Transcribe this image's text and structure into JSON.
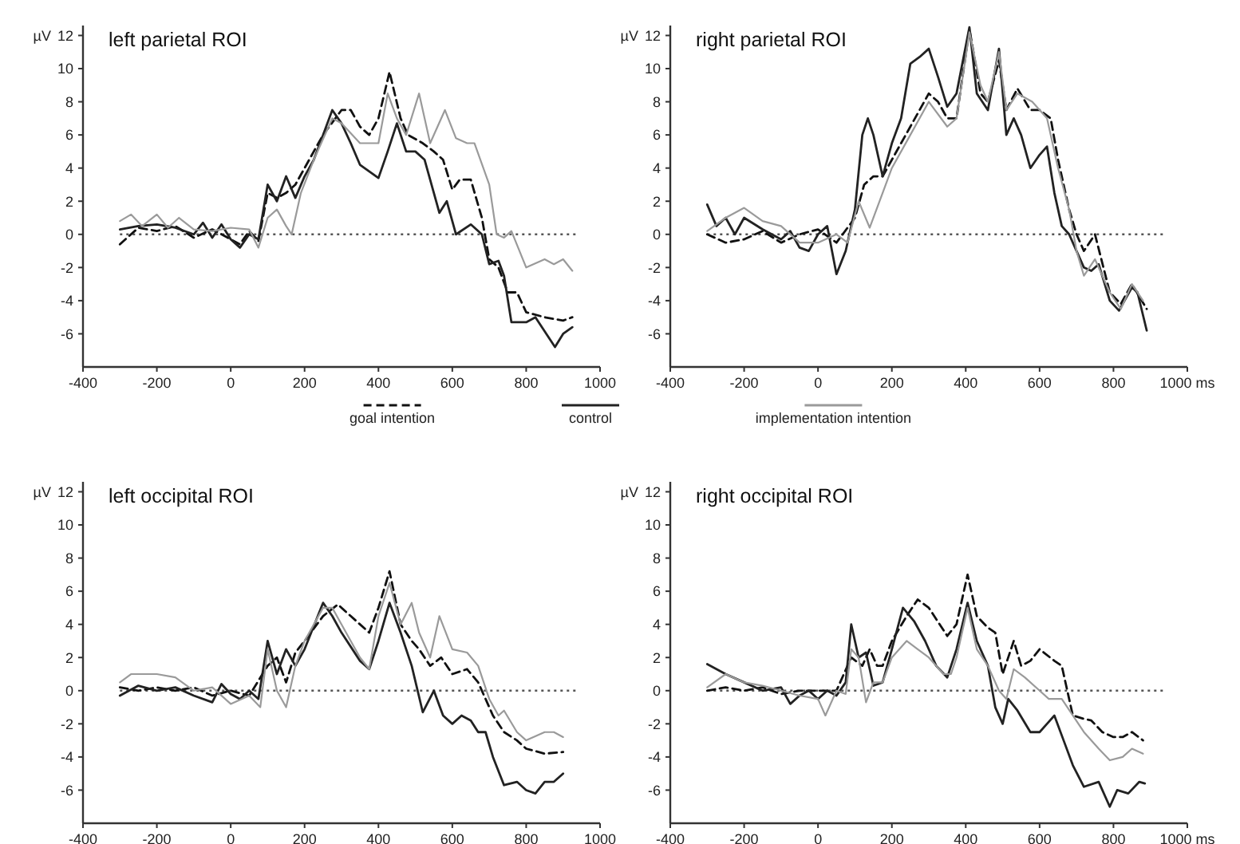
{
  "chart_data": [
    {
      "type": "line",
      "title": "left parietal ROI",
      "ylabel": "µV",
      "xlim": [
        -400,
        1000
      ],
      "xticks": [
        -400,
        -200,
        0,
        200,
        400,
        600,
        800,
        1000
      ],
      "ylim": [
        -8,
        12.6
      ],
      "yticks": [
        12,
        10,
        8,
        6,
        4,
        2,
        0,
        -2,
        -4,
        -6
      ],
      "legend": "bottom",
      "grid": false,
      "ref_lines": [
        {
          "axis": "y",
          "value": 0,
          "color": "#555555",
          "line_style": "dotted"
        }
      ],
      "series": [
        {
          "name": "goal intention",
          "color": "#111111",
          "line_style": "dashed",
          "x": [
            -300,
            -250,
            -200,
            -150,
            -100,
            -50,
            0,
            25,
            50,
            75,
            100,
            125,
            150,
            175,
            200,
            250,
            300,
            325,
            350,
            375,
            400,
            430,
            460,
            480,
            520,
            550,
            575,
            600,
            620,
            650,
            680,
            700,
            725,
            750,
            775,
            800,
            850,
            900,
            925
          ],
          "values": [
            -0.6,
            0.4,
            0.2,
            0.5,
            -0.2,
            0.3,
            -0.3,
            -0.6,
            0.2,
            -0.4,
            2.5,
            2.2,
            2.5,
            3.0,
            4.0,
            6.0,
            7.5,
            7.5,
            6.5,
            6.0,
            7.0,
            9.8,
            7.0,
            6.0,
            5.5,
            5.0,
            4.5,
            2.7,
            3.3,
            3.3,
            1.0,
            -1.5,
            -2.0,
            -3.5,
            -3.5,
            -4.7,
            -5.0,
            -5.2,
            -5.0
          ]
        },
        {
          "name": "control",
          "color": "#222222",
          "x": [
            -300,
            -250,
            -200,
            -150,
            -100,
            -75,
            -50,
            -25,
            0,
            25,
            50,
            75,
            100,
            125,
            150,
            175,
            200,
            225,
            250,
            275,
            300,
            325,
            350,
            375,
            400,
            425,
            450,
            475,
            500,
            525,
            550,
            565,
            585,
            610,
            650,
            680,
            700,
            725,
            740,
            760,
            800,
            825,
            878,
            900,
            925
          ],
          "values": [
            0.3,
            0.5,
            0.6,
            0.4,
            0,
            0.7,
            -0.2,
            0.6,
            -0.3,
            -0.8,
            0,
            -0.3,
            3.0,
            2.0,
            3.5,
            2.2,
            3.5,
            4.5,
            6.0,
            7.5,
            6.7,
            5.5,
            4.2,
            3.8,
            3.4,
            5.0,
            6.7,
            5.0,
            5.0,
            4.5,
            2.5,
            1.3,
            2.0,
            0,
            0.6,
            0,
            -1.8,
            -1.6,
            -2.5,
            -5.3,
            -5.3,
            -5.0,
            -6.8,
            -6.0,
            -5.6
          ]
        },
        {
          "name": "implementation intention",
          "color": "#9a9a9a",
          "x": [
            -300,
            -270,
            -240,
            -200,
            -170,
            -140,
            -100,
            -50,
            0,
            50,
            75,
            100,
            125,
            150,
            165,
            190,
            225,
            275,
            300,
            350,
            400,
            425,
            450,
            475,
            510,
            540,
            580,
            610,
            640,
            660,
            700,
            720,
            740,
            760,
            800,
            850,
            875,
            900,
            925
          ],
          "values": [
            0.8,
            1.2,
            0.5,
            1.2,
            0.4,
            1.0,
            0.3,
            0.2,
            0.4,
            0.3,
            -0.8,
            1.0,
            1.5,
            0.5,
            0,
            2.5,
            4.5,
            7.0,
            6.7,
            5.5,
            5.5,
            8.5,
            7.0,
            6.0,
            8.5,
            5.5,
            7.5,
            5.8,
            5.5,
            5.5,
            3.0,
            0,
            -0.2,
            0.2,
            -2.0,
            -1.5,
            -1.8,
            -1.5,
            -2.2
          ]
        }
      ]
    },
    {
      "type": "line",
      "title": "right parietal ROI",
      "ylabel": "µV",
      "xlim": [
        -400,
        1000
      ],
      "xticks": [
        -400,
        -200,
        0,
        200,
        400,
        600,
        800,
        {
          "value": 1000,
          "label": "1000 ms"
        }
      ],
      "ylim": [
        -8,
        12.6
      ],
      "yticks": [
        12,
        10,
        8,
        6,
        4,
        2,
        0,
        -2,
        -4,
        -6
      ],
      "grid": false,
      "ref_lines": [
        {
          "axis": "y",
          "value": 0,
          "color": "#555555",
          "line_style": "dotted"
        }
      ],
      "series": [
        {
          "color": "#111111",
          "line_style": "dashed",
          "x": [
            -300,
            -250,
            -200,
            -150,
            -100,
            -50,
            0,
            50,
            100,
            125,
            150,
            175,
            200,
            250,
            300,
            325,
            350,
            375,
            410,
            440,
            460,
            490,
            510,
            540,
            575,
            600,
            630,
            650,
            680,
            700,
            720,
            750,
            790,
            820,
            850,
            890
          ],
          "values": [
            0,
            -0.5,
            -0.3,
            0.2,
            -0.5,
            0,
            0.3,
            -0.5,
            1.0,
            3.0,
            3.5,
            3.5,
            4.5,
            6.5,
            8.5,
            8.0,
            7.0,
            7.0,
            12.4,
            8.5,
            8.0,
            10.5,
            7.5,
            8.8,
            7.5,
            7.5,
            7.0,
            4.5,
            1.5,
            0,
            -1.0,
            0,
            -3.5,
            -4.2,
            -3.0,
            -4.5
          ]
        },
        {
          "color": "#222222",
          "x": [
            -300,
            -275,
            -250,
            -225,
            -200,
            -150,
            -100,
            -75,
            -50,
            -25,
            0,
            25,
            50,
            75,
            100,
            120,
            135,
            150,
            175,
            200,
            225,
            250,
            275,
            300,
            325,
            350,
            375,
            410,
            430,
            460,
            490,
            510,
            530,
            550,
            575,
            600,
            620,
            640,
            660,
            680,
            700,
            720,
            740,
            760,
            790,
            815,
            830,
            850,
            865,
            890
          ],
          "values": [
            1.8,
            0.5,
            1.0,
            0,
            1.0,
            0.3,
            -0.3,
            0.2,
            -0.8,
            -1.0,
            0,
            0.5,
            -2.4,
            -1.0,
            1.5,
            6.0,
            7.0,
            6.0,
            3.5,
            5.5,
            7.0,
            10.3,
            10.7,
            11.2,
            9.5,
            7.7,
            8.5,
            12.5,
            8.5,
            7.5,
            11.2,
            6.0,
            7.0,
            6.0,
            4.0,
            4.8,
            5.3,
            2.5,
            0.5,
            0,
            -1.0,
            -2.0,
            -2.2,
            -1.8,
            -4.0,
            -4.6,
            -4.0,
            -3.2,
            -3.5,
            -5.8
          ]
        },
        {
          "color": "#9a9a9a",
          "x": [
            -300,
            -250,
            -200,
            -150,
            -100,
            -50,
            0,
            50,
            80,
            110,
            140,
            175,
            200,
            250,
            300,
            350,
            375,
            410,
            440,
            460,
            490,
            510,
            540,
            580,
            620,
            650,
            680,
            700,
            720,
            750,
            790,
            820,
            850,
            880
          ],
          "values": [
            0.2,
            1.0,
            1.6,
            0.8,
            0.5,
            -0.5,
            -0.5,
            0,
            -0.5,
            2.0,
            0.4,
            2.5,
            4.0,
            6.0,
            8.0,
            6.5,
            7.0,
            12.2,
            9.0,
            8.0,
            11.0,
            7.5,
            8.5,
            8.0,
            7.0,
            4.0,
            1.5,
            -1.0,
            -2.5,
            -1.5,
            -3.5,
            -4.5,
            -3.0,
            -4.0
          ]
        }
      ]
    },
    {
      "type": "line",
      "title": "left occipital ROI",
      "ylabel": "µV",
      "xlim": [
        -400,
        1000
      ],
      "xticks": [
        -400,
        -200,
        0,
        200,
        400,
        600,
        800,
        1000
      ],
      "ylim": [
        -8,
        12.6
      ],
      "yticks": [
        12,
        10,
        8,
        6,
        4,
        2,
        0,
        -2,
        -4,
        -6
      ],
      "grid": false,
      "ref_lines": [
        {
          "axis": "y",
          "value": 0,
          "color": "#555555",
          "line_style": "dotted"
        }
      ],
      "series": [
        {
          "color": "#111111",
          "line_style": "dashed",
          "x": [
            -300,
            -250,
            -200,
            -150,
            -100,
            -50,
            0,
            50,
            100,
            125,
            150,
            175,
            200,
            250,
            290,
            325,
            375,
            400,
            430,
            460,
            490,
            510,
            540,
            570,
            600,
            640,
            670,
            690,
            710,
            740,
            775,
            800,
            850,
            900
          ],
          "values": [
            0.2,
            0,
            0.2,
            0,
            0.2,
            -0.3,
            0,
            -0.3,
            1.5,
            2.0,
            0.5,
            2.3,
            3.0,
            4.5,
            5.2,
            4.5,
            3.5,
            5.0,
            7.2,
            4.0,
            3.0,
            2.5,
            1.5,
            2.0,
            1.0,
            1.3,
            0.5,
            -0.5,
            -1.5,
            -2.5,
            -3.0,
            -3.5,
            -3.8,
            -3.7
          ]
        },
        {
          "color": "#222222",
          "x": [
            -300,
            -250,
            -200,
            -150,
            -100,
            -50,
            -25,
            0,
            25,
            50,
            75,
            100,
            125,
            150,
            175,
            200,
            250,
            275,
            300,
            350,
            375,
            400,
            430,
            460,
            490,
            520,
            550,
            575,
            600,
            625,
            650,
            670,
            690,
            710,
            740,
            775,
            800,
            825,
            850,
            875,
            900
          ],
          "values": [
            -0.3,
            0.3,
            0,
            0.2,
            -0.3,
            -0.7,
            0.4,
            -0.2,
            -0.5,
            0,
            -0.5,
            3.0,
            1.0,
            2.5,
            1.5,
            2.5,
            5.3,
            4.5,
            3.5,
            1.8,
            1.3,
            3.0,
            5.3,
            3.5,
            1.5,
            -1.3,
            0,
            -1.5,
            -2.0,
            -1.5,
            -1.8,
            -2.5,
            -2.5,
            -4.0,
            -5.7,
            -5.5,
            -6.0,
            -6.2,
            -5.5,
            -5.5,
            -5.0
          ]
        },
        {
          "color": "#9a9a9a",
          "x": [
            -300,
            -270,
            -200,
            -150,
            -100,
            -50,
            0,
            50,
            80,
            100,
            125,
            150,
            175,
            200,
            250,
            275,
            300,
            350,
            375,
            400,
            430,
            460,
            490,
            510,
            540,
            565,
            600,
            640,
            670,
            700,
            725,
            740,
            775,
            800,
            850,
            875,
            900
          ],
          "values": [
            0.5,
            1.0,
            1.0,
            0.8,
            0,
            0.2,
            -0.8,
            -0.3,
            -1.0,
            2.5,
            0,
            -1.0,
            1.5,
            3.0,
            5.0,
            5.0,
            4.0,
            2.0,
            1.3,
            4.5,
            6.5,
            4.0,
            5.3,
            3.5,
            2.0,
            4.5,
            2.5,
            2.3,
            1.5,
            -0.5,
            -1.5,
            -1.2,
            -2.5,
            -3.0,
            -2.5,
            -2.5,
            -2.8
          ]
        }
      ]
    },
    {
      "type": "line",
      "title": "right occipital ROI",
      "ylabel": "µV",
      "xlim": [
        -400,
        1000
      ],
      "xticks": [
        -400,
        -200,
        0,
        200,
        400,
        600,
        800,
        {
          "value": 1000,
          "label": "1000 ms"
        }
      ],
      "ylim": [
        -8,
        12.6
      ],
      "yticks": [
        12,
        10,
        8,
        6,
        4,
        2,
        0,
        -2,
        -4,
        -6
      ],
      "grid": false,
      "ref_lines": [
        {
          "axis": "y",
          "value": 0,
          "color": "#555555",
          "line_style": "dotted"
        }
      ],
      "series": [
        {
          "color": "#111111",
          "line_style": "dashed",
          "x": [
            -300,
            -250,
            -200,
            -150,
            -100,
            -50,
            0,
            50,
            90,
            120,
            140,
            160,
            175,
            200,
            240,
            270,
            300,
            350,
            375,
            405,
            430,
            460,
            480,
            500,
            530,
            550,
            575,
            600,
            640,
            660,
            690,
            720,
            740,
            770,
            800,
            825,
            850,
            880
          ],
          "values": [
            0,
            0.2,
            0,
            0.2,
            -0.2,
            0,
            0,
            0,
            2.0,
            1.5,
            2.5,
            1.5,
            1.5,
            3.0,
            4.5,
            5.5,
            5.0,
            3.3,
            4.0,
            7.0,
            4.5,
            3.8,
            3.5,
            1.0,
            3.0,
            1.5,
            1.8,
            2.5,
            1.8,
            1.5,
            -1.5,
            -1.7,
            -1.8,
            -2.5,
            -2.8,
            -2.8,
            -2.5,
            -3.0
          ]
        },
        {
          "color": "#222222",
          "x": [
            -300,
            -250,
            -200,
            -150,
            -100,
            -75,
            -50,
            -25,
            0,
            25,
            50,
            75,
            90,
            110,
            130,
            150,
            175,
            200,
            230,
            260,
            290,
            320,
            350,
            375,
            405,
            430,
            460,
            480,
            500,
            515,
            540,
            575,
            600,
            620,
            640,
            665,
            690,
            720,
            760,
            790,
            810,
            840,
            870,
            885
          ],
          "values": [
            1.6,
            1.0,
            0.5,
            0,
            0.2,
            -0.8,
            -0.3,
            0,
            -0.5,
            0,
            -0.3,
            0.5,
            4.0,
            2.0,
            2.3,
            0.3,
            0.5,
            2.5,
            5.0,
            4.2,
            3.0,
            1.5,
            0.8,
            2.5,
            5.3,
            3.0,
            1.5,
            -1.0,
            -2.0,
            -0.5,
            -1.2,
            -2.5,
            -2.5,
            -2.0,
            -1.5,
            -3.0,
            -4.5,
            -5.8,
            -5.5,
            -7.0,
            -6.0,
            -6.2,
            -5.5,
            -5.6
          ]
        },
        {
          "color": "#9a9a9a",
          "x": [
            -300,
            -250,
            -200,
            -150,
            -100,
            -50,
            0,
            20,
            50,
            75,
            90,
            110,
            130,
            150,
            175,
            200,
            240,
            270,
            300,
            340,
            360,
            375,
            405,
            430,
            460,
            490,
            510,
            530,
            560,
            600,
            625,
            660,
            690,
            720,
            760,
            790,
            825,
            850,
            880
          ],
          "values": [
            0.2,
            1.0,
            0.5,
            0.3,
            0,
            -0.3,
            -0.5,
            -1.5,
            0,
            -0.2,
            2.5,
            2.0,
            -0.7,
            0.5,
            0.5,
            2.0,
            3.0,
            2.5,
            2.0,
            1.0,
            1.0,
            2.0,
            5.0,
            2.5,
            1.5,
            0,
            -0.5,
            1.3,
            0.8,
            0,
            -0.5,
            -0.5,
            -1.5,
            -2.5,
            -3.5,
            -4.2,
            -4.0,
            -3.5,
            -3.8
          ]
        }
      ]
    }
  ]
}
